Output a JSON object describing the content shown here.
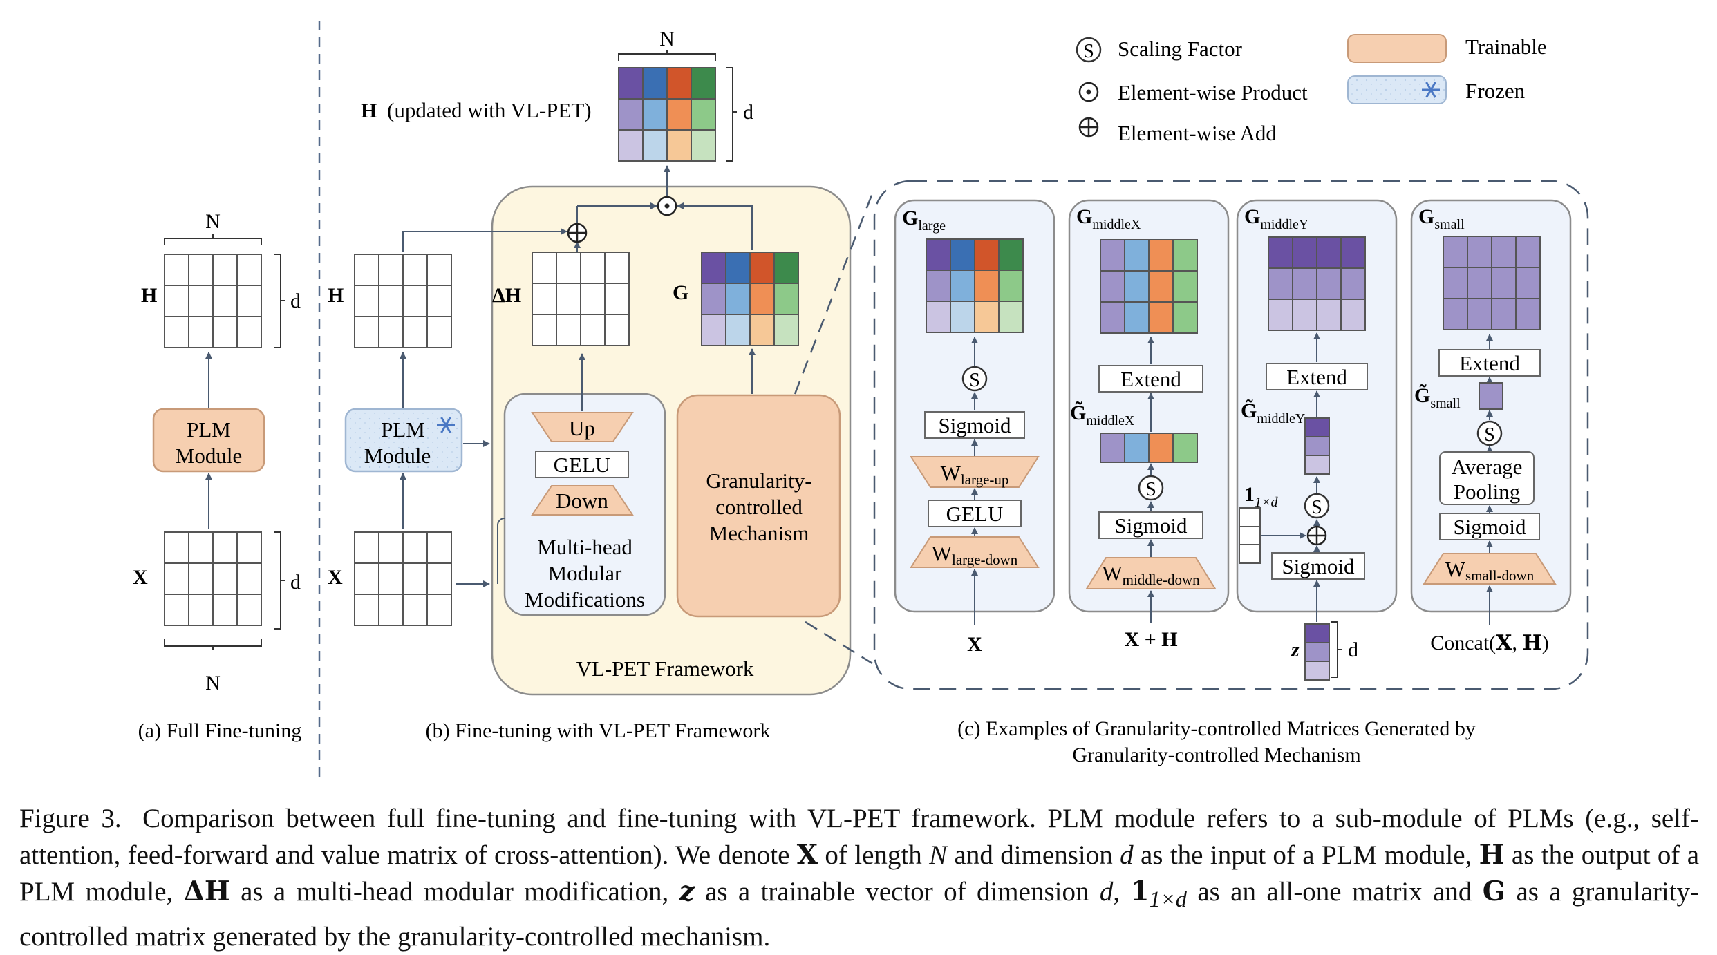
{
  "legend": {
    "scaling": "Scaling Factor",
    "scaling_symbol": "S",
    "product": "Element-wise Product",
    "add": "Element-wise Add",
    "trainable": "Trainable",
    "frozen": "Frozen",
    "frozen_icon": "snowflake-icon"
  },
  "panel_a": {
    "h": "H",
    "x": "X",
    "n_top": "N",
    "n_bottom": "N",
    "d_h": "d",
    "d_x": "d",
    "plm_line1": "PLM",
    "plm_line2": "Module",
    "caption": "(a) Full Fine-tuning"
  },
  "panel_b": {
    "h": "H",
    "x": "X",
    "delta_h": "ΔH",
    "g": "G",
    "plm_line1": "PLM",
    "plm_line2": "Module",
    "up": "Up",
    "gelu": "GELU",
    "down": "Down",
    "mhm_line1": "Multi-head",
    "mhm_line2": "Modular",
    "mhm_line3": "Modifications",
    "gcm_line1": "Granularity-",
    "gcm_line2": "controlled",
    "gcm_line3": "Mechanism",
    "framework": "VL-PET Framework",
    "out_n": "N",
    "out_d": "d",
    "out_h": "H",
    "out_label": "(updated with VL-PET)",
    "caption": "(b) Fine-tuning with VL-PET Framework"
  },
  "panel_c": {
    "large": {
      "g": "G",
      "g_sub": "large",
      "s": "S",
      "sigmoid": "Sigmoid",
      "w": "W",
      "w_up_sub": "large-up",
      "gelu": "GELU",
      "w_down_sub": "large-down",
      "input": "X"
    },
    "middlex": {
      "g": "G",
      "g_sub": "middleX",
      "extend": "Extend",
      "gt": "G̃",
      "gt_sub": "middleX",
      "s": "S",
      "sigmoid": "Sigmoid",
      "w": "W",
      "w_sub": "middle-down",
      "input": "X + H"
    },
    "middley": {
      "g": "G",
      "g_sub": "middleY",
      "extend": "Extend",
      "gt": "G̃",
      "gt_sub": "middleY",
      "s": "S",
      "ones": "1",
      "ones_sub": "1×d",
      "sigmoid": "Sigmoid",
      "z": "z",
      "d": "d"
    },
    "small": {
      "g": "G",
      "g_sub": "small",
      "extend": "Extend",
      "gt": "G̃",
      "gt_sub": "small",
      "s": "S",
      "pool_line1": "Average",
      "pool_line2": "Pooling",
      "sigmoid": "Sigmoid",
      "w": "W",
      "w_sub": "small-down",
      "input_pre": "Concat(",
      "input_x": "X",
      "input_comma": ", ",
      "input_h": "H",
      "input_post": ")"
    },
    "caption_line1": "(c) Examples of Granularity-controlled Matrices Generated by",
    "caption_line2": "Granularity-controlled Mechanism"
  },
  "caption": {
    "lead": "Figure 3.",
    "t1": "Comparison between full fine-tuning and fine-tuning with VL-PET framework. PLM module refers to a sub-module of PLMs (e.g., self-attention, feed-forward and value matrix of cross-attention). We denote ",
    "x": "X",
    "t2": " of length ",
    "n": "N",
    "t3": " and dimension ",
    "d": "d",
    "t4": " as the input of a PLM module, ",
    "h": "H",
    "t5": " as the output of a PLM module, ",
    "dh": "ΔH",
    "t6": " as a multi-head modular modification, ",
    "z": "z",
    "t7": " as a trainable vector of dimension ",
    "d2": "d",
    "t8": ", ",
    "ones": "1",
    "ones_sub": "1×d",
    "t9": " as an all-one matrix and ",
    "g": "G",
    "t10": " as a granularity-controlled matrix generated by the granularity-controlled mechanism."
  },
  "colors": {
    "trainable": "#f6cfb0",
    "frozen": "#dbe8f6",
    "framework_bg": "#fdf6e0",
    "panel_bg": "#eef3fb",
    "purple": "#6a51a3",
    "blue": "#3a6fb3",
    "orange": "#d1552a",
    "green": "#3d8a4c",
    "purple_mid": "#9e93c8",
    "blue_mid": "#7fb0db",
    "orange_mid": "#ef8f55",
    "green_mid": "#8dc989",
    "purple_light": "#cbc4e2",
    "blue_light": "#bcd5ea",
    "orange_light": "#f6c897",
    "green_light": "#c6e2bf"
  }
}
